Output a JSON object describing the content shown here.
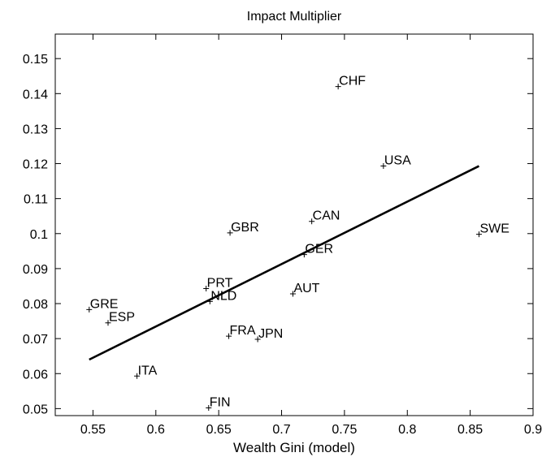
{
  "chart_data": {
    "type": "scatter",
    "title": "Impact Multiplier",
    "xlabel": "Wealth Gini (model)",
    "ylabel": "",
    "xlim": [
      0.52,
      0.9
    ],
    "ylim": [
      0.048,
      0.157
    ],
    "xticks": [
      0.55,
      0.6,
      0.65,
      0.7,
      0.75,
      0.8,
      0.85,
      0.9
    ],
    "xtick_labels": [
      "0.55",
      "0.6",
      "0.65",
      "0.7",
      "0.75",
      "0.8",
      "0.85",
      "0.9"
    ],
    "yticks": [
      0.05,
      0.06,
      0.07,
      0.08,
      0.09,
      0.1,
      0.11,
      0.12,
      0.13,
      0.14,
      0.15
    ],
    "ytick_labels": [
      "0.05",
      "0.06",
      "0.07",
      "0.08",
      "0.09",
      "0.1",
      "0.11",
      "0.12",
      "0.13",
      "0.14",
      "0.15"
    ],
    "grid": false,
    "points": [
      {
        "label": "CHF",
        "x": 0.745,
        "y": 0.142
      },
      {
        "label": "USA",
        "x": 0.781,
        "y": 0.1193
      },
      {
        "label": "CAN",
        "x": 0.724,
        "y": 0.1035
      },
      {
        "label": "SWE",
        "x": 0.857,
        "y": 0.0998
      },
      {
        "label": "GBR",
        "x": 0.659,
        "y": 0.1002
      },
      {
        "label": "GER",
        "x": 0.718,
        "y": 0.094
      },
      {
        "label": "PRT",
        "x": 0.64,
        "y": 0.0843
      },
      {
        "label": "NLD",
        "x": 0.643,
        "y": 0.0806
      },
      {
        "label": "AUT",
        "x": 0.709,
        "y": 0.0828
      },
      {
        "label": "GRE",
        "x": 0.547,
        "y": 0.0783
      },
      {
        "label": "ESP",
        "x": 0.562,
        "y": 0.0745
      },
      {
        "label": "FRA",
        "x": 0.658,
        "y": 0.0707
      },
      {
        "label": "JPN",
        "x": 0.681,
        "y": 0.0698
      },
      {
        "label": "ITA",
        "x": 0.585,
        "y": 0.0593
      },
      {
        "label": "FIN",
        "x": 0.642,
        "y": 0.0502
      }
    ],
    "fit_line": {
      "x": [
        0.547,
        0.857
      ],
      "y": [
        0.064,
        0.1193
      ]
    }
  }
}
